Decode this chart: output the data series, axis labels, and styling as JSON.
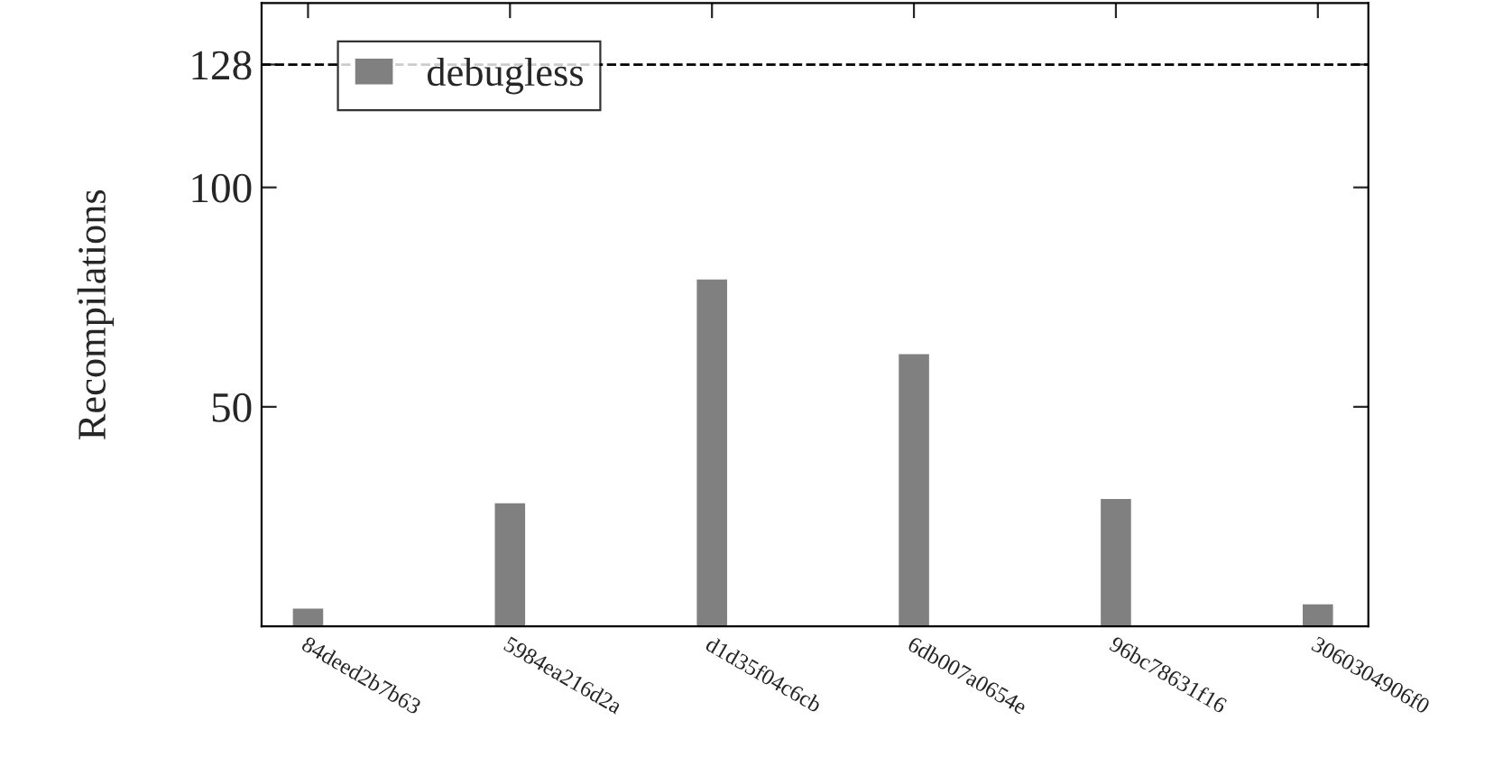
{
  "chart_data": {
    "type": "bar",
    "ylabel": "Recompilations",
    "categories": [
      "84deed2b7b63",
      "5984ea216d2a",
      "d1d35f04c6cb",
      "6db007a0654e",
      "96bc78631f16",
      "3060304906f0"
    ],
    "series": [
      {
        "name": "debugless",
        "color": "#808080",
        "values": [
          4,
          28,
          79,
          62,
          29,
          5
        ]
      }
    ],
    "ylim": [
      0,
      142
    ],
    "yticks": [
      50,
      100,
      128
    ],
    "ref_lines": [
      {
        "axis": "y",
        "value": 128,
        "color": "#000000",
        "line_style": "dashed"
      }
    ],
    "legend": "top left",
    "grid": false
  }
}
